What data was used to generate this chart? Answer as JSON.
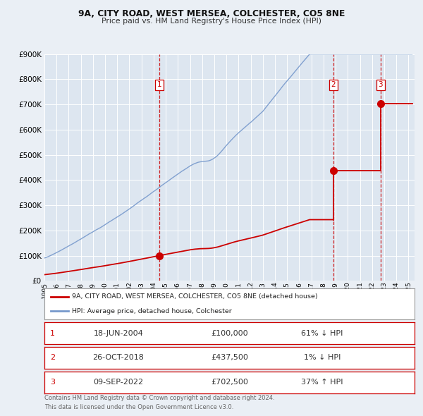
{
  "title_line1": "9A, CITY ROAD, WEST MERSEA, COLCHESTER, CO5 8NE",
  "title_line2": "Price paid vs. HM Land Registry's House Price Index (HPI)",
  "legend_property": "9A, CITY ROAD, WEST MERSEA, COLCHESTER, CO5 8NE (detached house)",
  "legend_hpi": "HPI: Average price, detached house, Colchester",
  "table_rows": [
    [
      "1",
      "18-JUN-2004",
      "£100,000",
      "61% ↓ HPI"
    ],
    [
      "2",
      "26-OCT-2018",
      "£437,500",
      "1% ↓ HPI"
    ],
    [
      "3",
      "09-SEP-2022",
      "£702,500",
      "37% ↑ HPI"
    ]
  ],
  "footer1": "Contains HM Land Registry data © Crown copyright and database right 2024.",
  "footer2": "This data is licensed under the Open Government Licence v3.0.",
  "property_color": "#cc0000",
  "hpi_color": "#7799cc",
  "vline_color": "#cc0000",
  "background_color": "#eaeff5",
  "plot_bg_color": "#dde6f0",
  "grid_color": "#ffffff",
  "ylim": [
    0,
    900000
  ],
  "yticks": [
    0,
    100000,
    200000,
    300000,
    400000,
    500000,
    600000,
    700000,
    800000,
    900000
  ],
  "xlim_start": 1995,
  "xlim_end": 2025.5,
  "t1": 2004.46,
  "t2": 2018.82,
  "t3": 2022.69,
  "p1": 100000,
  "p2": 437500,
  "p3": 702500
}
